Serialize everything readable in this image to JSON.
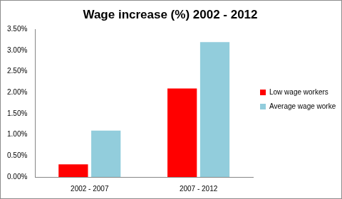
{
  "chart_data": {
    "type": "bar",
    "title": "Wage increase (%) 2002 - 2012",
    "categories": [
      "2002 - 2007",
      "2007 - 2012"
    ],
    "series": [
      {
        "name": "Low wage workers",
        "color": "#ff0000",
        "values": [
          0.3,
          2.1
        ]
      },
      {
        "name": "Average wage workers",
        "color": "#92cddc",
        "values": [
          1.1,
          3.2
        ]
      }
    ],
    "ylim": [
      0,
      3.5
    ],
    "yticks": [
      {
        "value": 0,
        "label": "0.00%"
      },
      {
        "value": 0.5,
        "label": "0.50%"
      },
      {
        "value": 1,
        "label": "1.00%"
      },
      {
        "value": 1.5,
        "label": "1.50%"
      },
      {
        "value": 2,
        "label": "2.00%"
      },
      {
        "value": 2.5,
        "label": "2.50%"
      },
      {
        "value": 3,
        "label": "3.00%"
      },
      {
        "value": 3.5,
        "label": "3.50%"
      }
    ],
    "grid": false,
    "legend": "right"
  }
}
